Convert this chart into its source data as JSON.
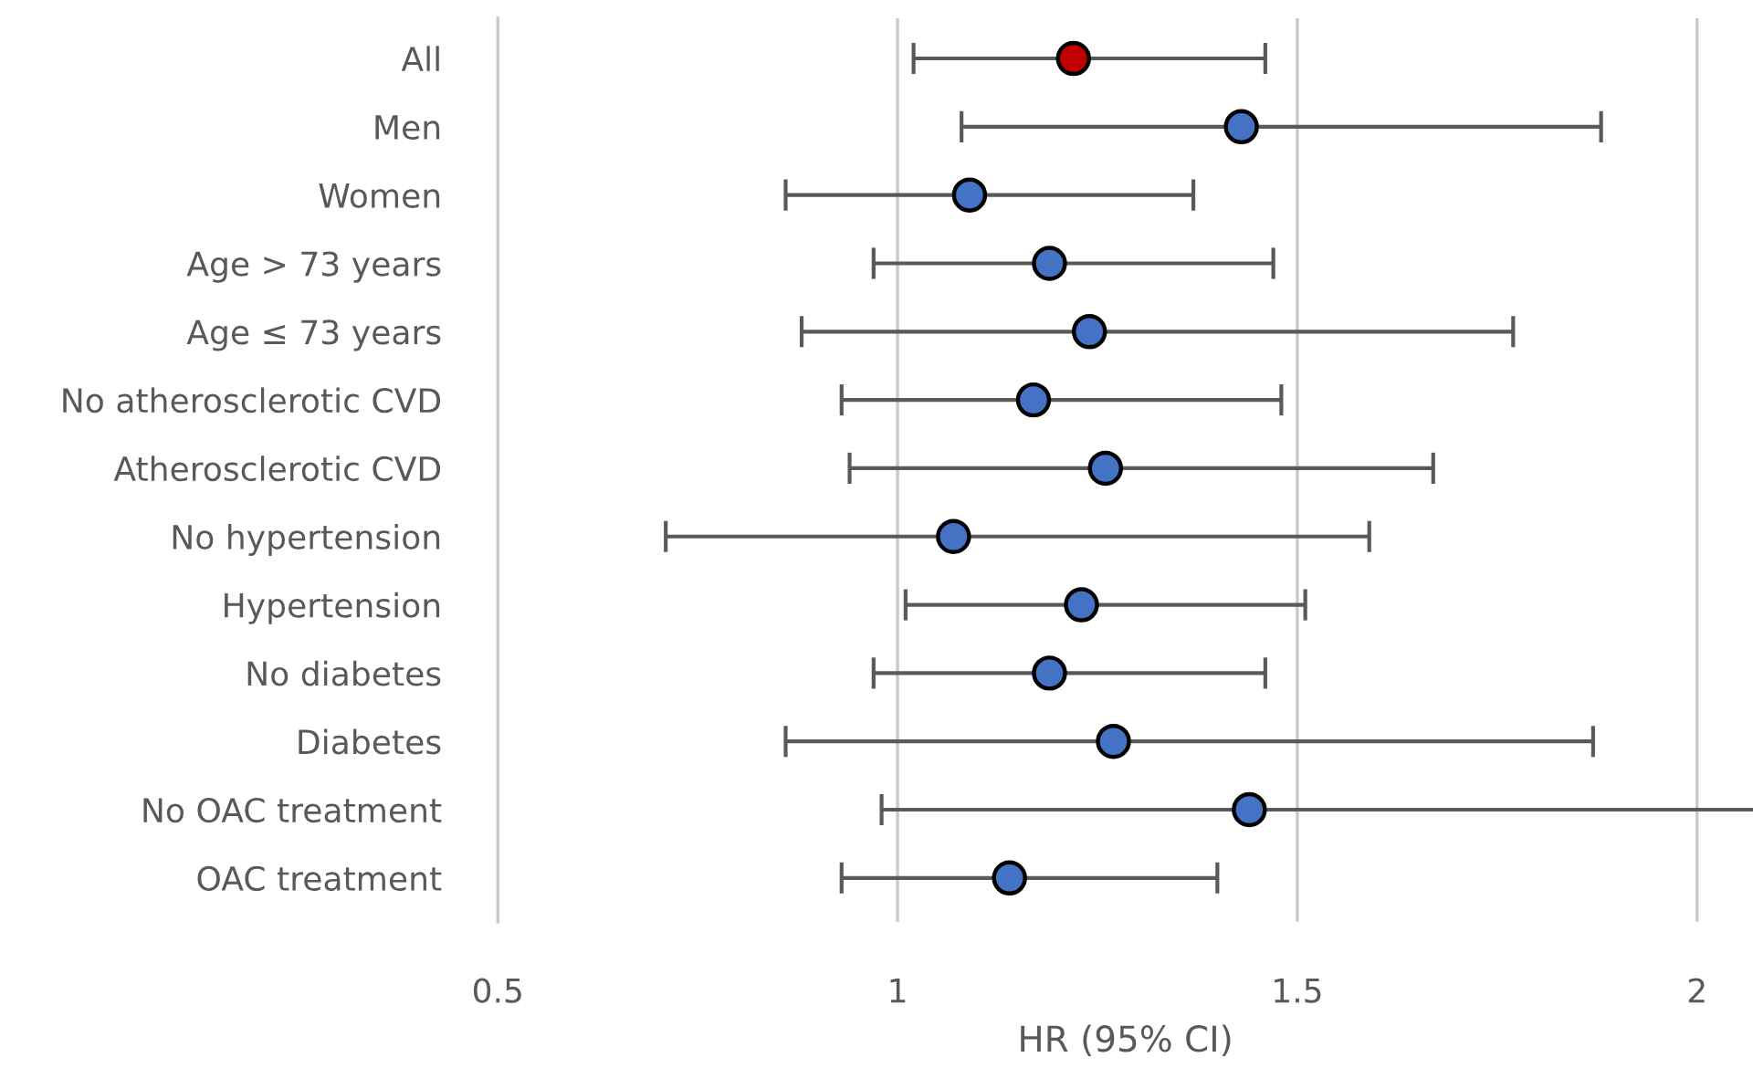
{
  "chart_data": {
    "type": "scatter",
    "orientation": "horizontal",
    "xlabel": "HR (95% CI)",
    "categories": [
      "All",
      "Men",
      "Women",
      "Age > 73 years",
      "Age ≤ 73 years",
      "No atherosclerotic CVD",
      "Atherosclerotic CVD",
      "No hypertension",
      "Hypertension",
      "No diabetes",
      "Diabetes",
      "No OAC treatment",
      "OAC treatment"
    ],
    "values": [
      1.22,
      1.43,
      1.09,
      1.19,
      1.24,
      1.17,
      1.26,
      1.07,
      1.23,
      1.19,
      1.27,
      1.44,
      1.14
    ],
    "errors": [
      [
        1.02,
        1.46
      ],
      [
        1.08,
        1.88
      ],
      [
        0.86,
        1.37
      ],
      [
        0.97,
        1.47
      ],
      [
        0.88,
        1.77
      ],
      [
        0.93,
        1.48
      ],
      [
        0.94,
        1.67
      ],
      [
        0.71,
        1.59
      ],
      [
        1.01,
        1.51
      ],
      [
        0.97,
        1.46
      ],
      [
        0.86,
        1.87
      ],
      [
        0.98,
        2.07
      ],
      [
        0.93,
        1.4
      ]
    ],
    "colors": [
      "#c00000",
      "#4472c4",
      "#4472c4",
      "#4472c4",
      "#4472c4",
      "#4472c4",
      "#4472c4",
      "#4472c4",
      "#4472c4",
      "#4472c4",
      "#4472c4",
      "#4472c4",
      "#4472c4"
    ],
    "xlim": [
      0.5,
      2.07
    ],
    "xticks": [
      0.5,
      1,
      1.5,
      2
    ],
    "grid": "x",
    "marker": "circle"
  }
}
